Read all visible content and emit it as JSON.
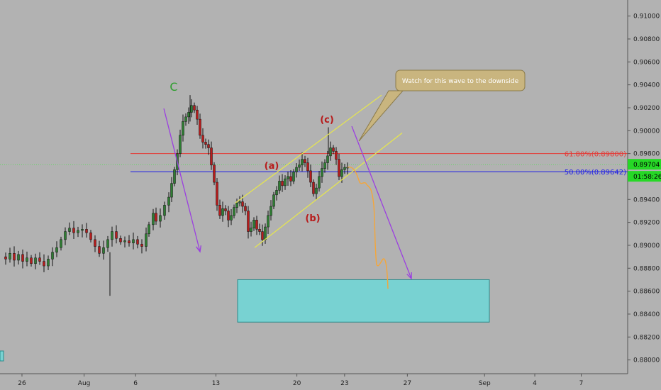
{
  "chart_data": {
    "type": "candlestick",
    "instrument_scale": "price",
    "y_ticks": [
      0.91,
      0.908,
      0.906,
      0.904,
      0.902,
      0.9,
      0.898,
      0.896,
      0.894,
      0.892,
      0.89,
      0.888,
      0.886,
      0.884,
      0.882,
      0.88
    ],
    "y_tick_labels": [
      "0.91000",
      "0.90800",
      "0.90600",
      "0.90400",
      "0.90200",
      "0.90000",
      "0.89800",
      "0.89600",
      "0.89400",
      "0.89200",
      "0.89000",
      "0.88800",
      "0.88600",
      "0.88400",
      "0.88200",
      "0.88000"
    ],
    "ylim": [
      0.8788,
      0.9114
    ],
    "x_ticks": [
      {
        "label": "26",
        "pos": 0.035
      },
      {
        "label": "Aug",
        "pos": 0.134
      },
      {
        "label": "6",
        "pos": 0.216
      },
      {
        "label": "13",
        "pos": 0.344
      },
      {
        "label": "20",
        "pos": 0.473
      },
      {
        "label": "23",
        "pos": 0.549
      },
      {
        "label": "27",
        "pos": 0.649
      },
      {
        "label": "Sep",
        "pos": 0.772
      },
      {
        "label": "4",
        "pos": 0.852
      },
      {
        "label": "7",
        "pos": 0.926
      }
    ],
    "last_price": "0.89704",
    "countdown": "01:58:26",
    "fib_levels": [
      {
        "label": "61.80%(0.89800)",
        "value": 0.898,
        "color": "#e53935"
      },
      {
        "label": "50.00%(0.89642)",
        "value": 0.89642,
        "color": "#1e1ee6"
      }
    ],
    "current_price_line": 0.89704,
    "wave_labels": [
      {
        "text": "C",
        "color": "#2e9e2e"
      },
      {
        "text": "(a)",
        "color": "#b71c1c"
      },
      {
        "text": "(b)",
        "color": "#b71c1c"
      },
      {
        "text": "(c)",
        "color": "#b71c1c"
      }
    ],
    "callout": "Watch for this wave to the downside",
    "target_zone": {
      "low": 0.8833,
      "high": 0.887,
      "color": "#78d2d2"
    },
    "colors": {
      "bull": "#2e7d32",
      "bear": "#b71c1c",
      "wick": "#111111",
      "channel": "#e8e84a",
      "arrow": "#9b3fe0",
      "projection": "#f4a63a"
    }
  }
}
